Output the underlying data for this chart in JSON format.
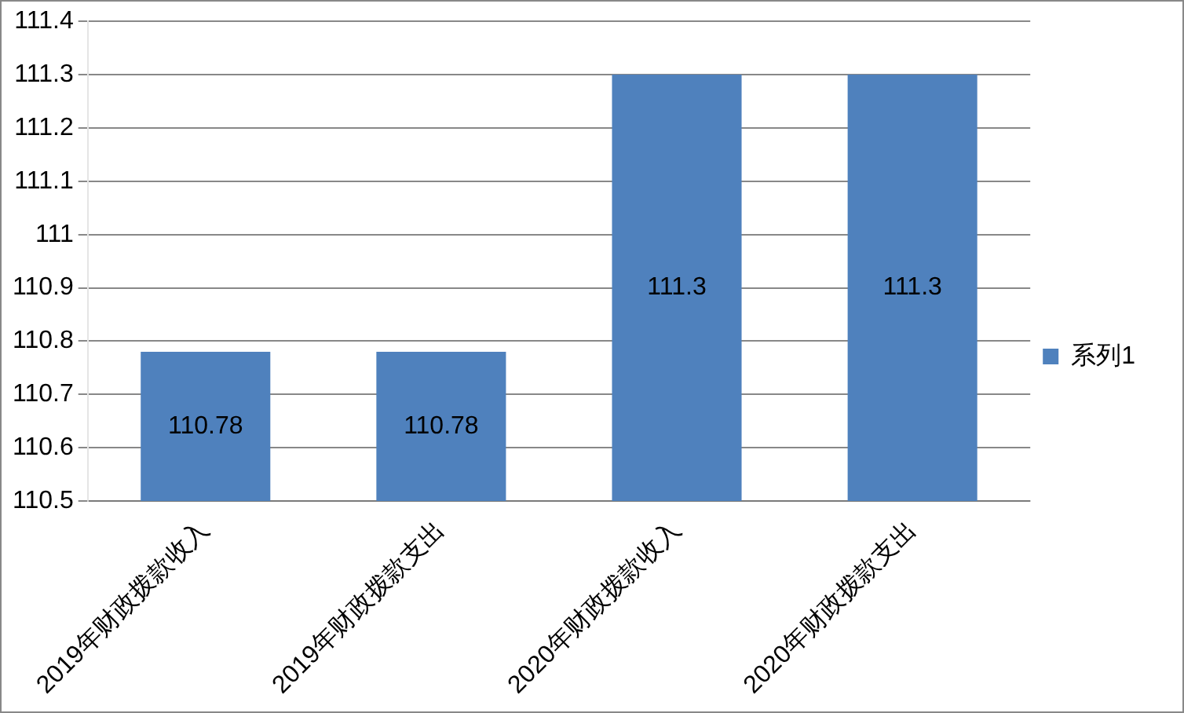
{
  "chart_data": {
    "type": "bar",
    "categories": [
      "2019年财政拨款收入",
      "2019年财政拨款支出",
      "2020年财政拨款收入",
      "2020年财政拨款支出"
    ],
    "series": [
      {
        "name": "系列1",
        "color": "#4f81bd",
        "values": [
          110.78,
          110.78,
          111.3,
          111.3
        ]
      }
    ],
    "ylim": [
      110.5,
      111.4
    ],
    "yticks": [
      110.5,
      110.6,
      110.7,
      110.8,
      110.9,
      111,
      111.1,
      111.2,
      111.3,
      111.4
    ],
    "grid": "y",
    "legend": "right",
    "data_labels": true
  }
}
